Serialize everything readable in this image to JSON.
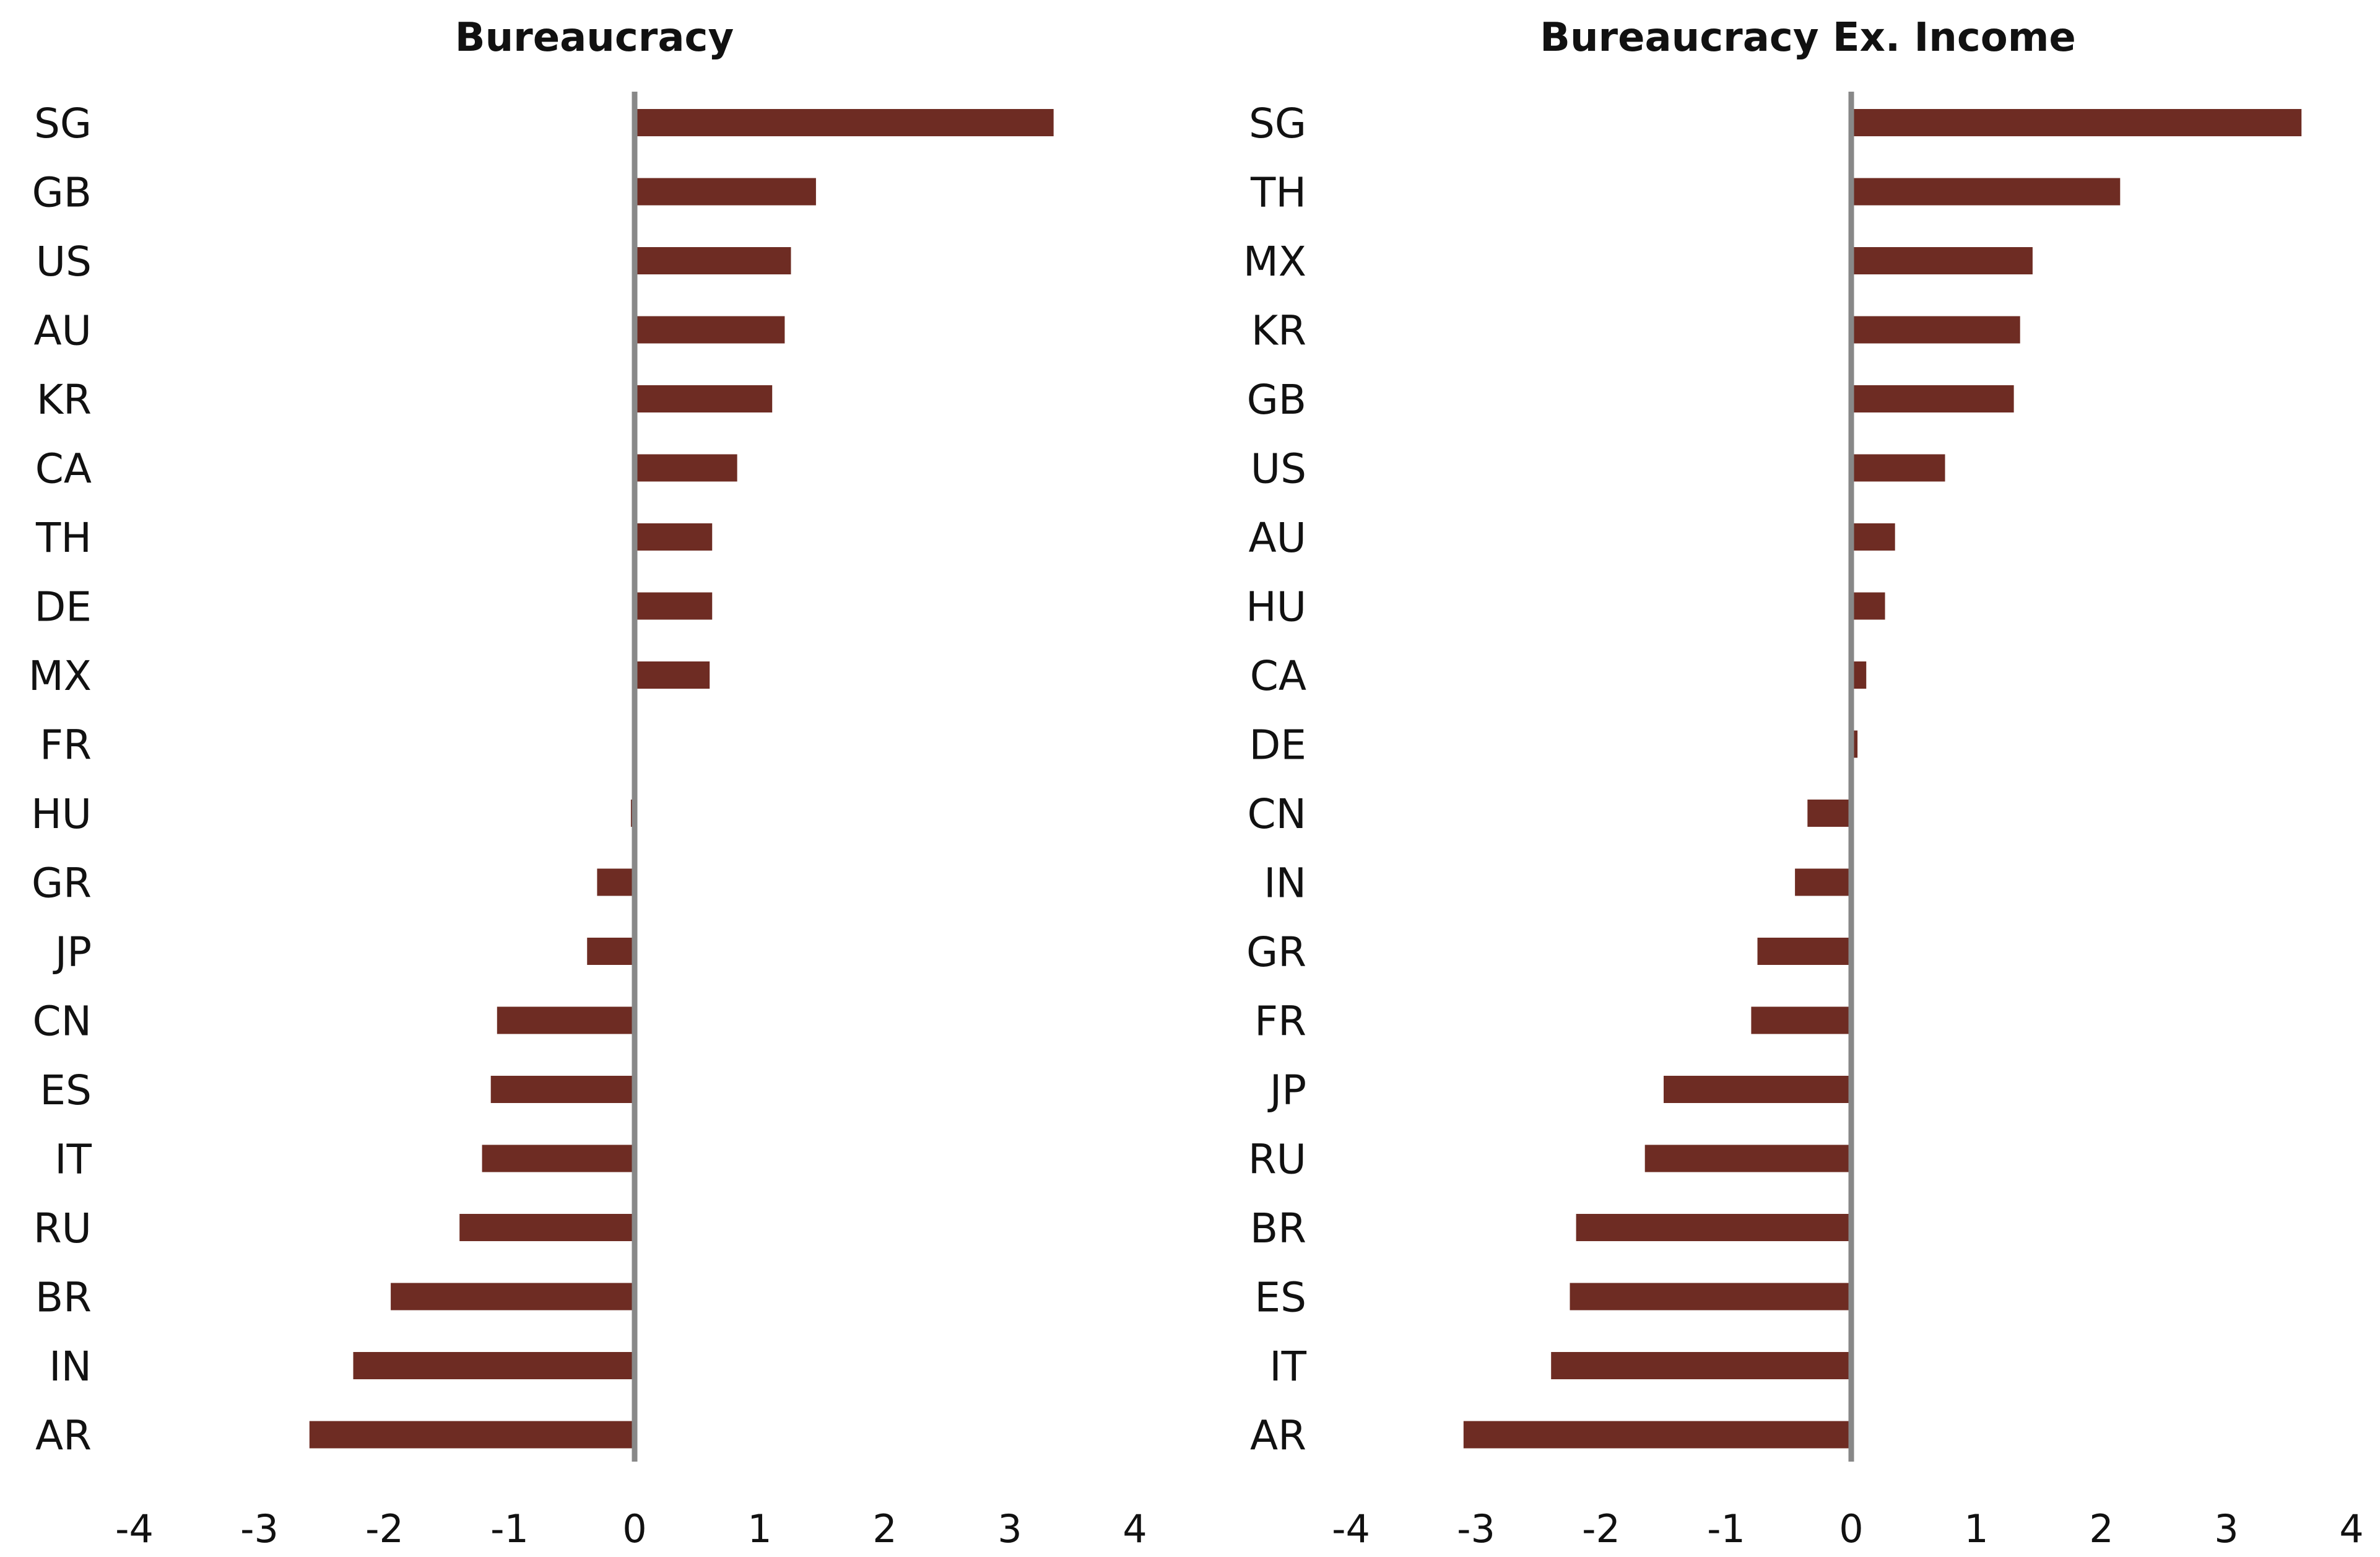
{
  "chart_data": [
    {
      "type": "bar",
      "orientation": "horizontal",
      "title": "Bureaucracy",
      "categories": [
        "SG",
        "GB",
        "US",
        "AU",
        "KR",
        "CA",
        "TH",
        "DE",
        "MX",
        "FR",
        "HU",
        "GR",
        "JP",
        "CN",
        "ES",
        "IT",
        "RU",
        "BR",
        "IN",
        "AR"
      ],
      "values": [
        3.35,
        1.45,
        1.25,
        1.2,
        1.1,
        0.82,
        0.62,
        0.62,
        0.6,
        0.0,
        -0.03,
        -0.3,
        -0.38,
        -1.1,
        -1.15,
        -1.22,
        -1.4,
        -1.95,
        -2.25,
        -2.6
      ],
      "xlim": [
        -4,
        4
      ],
      "xticks": [
        "-4",
        "-3",
        "-2",
        "-1",
        "0",
        "1",
        "2",
        "3",
        "4"
      ],
      "bar_color": "#6e2c23",
      "axis_color": "#888888",
      "grid": false
    },
    {
      "type": "bar",
      "orientation": "horizontal",
      "title": "Bureaucracy Ex. Income",
      "categories": [
        "SG",
        "TH",
        "MX",
        "KR",
        "GB",
        "US",
        "AU",
        "HU",
        "CA",
        "DE",
        "CN",
        "IN",
        "GR",
        "FR",
        "JP",
        "RU",
        "BR",
        "ES",
        "IT",
        "AR"
      ],
      "values": [
        3.6,
        2.15,
        1.45,
        1.35,
        1.3,
        0.75,
        0.35,
        0.27,
        0.12,
        0.05,
        -0.35,
        -0.45,
        -0.75,
        -0.8,
        -1.5,
        -1.65,
        -2.2,
        -2.25,
        -2.4,
        -3.1
      ],
      "xlim": [
        -4,
        4
      ],
      "xticks": [
        "-4",
        "-3",
        "-2",
        "-1",
        "0",
        "1",
        "2",
        "3",
        "4"
      ],
      "bar_color": "#6e2c23",
      "axis_color": "#888888",
      "grid": false
    }
  ]
}
